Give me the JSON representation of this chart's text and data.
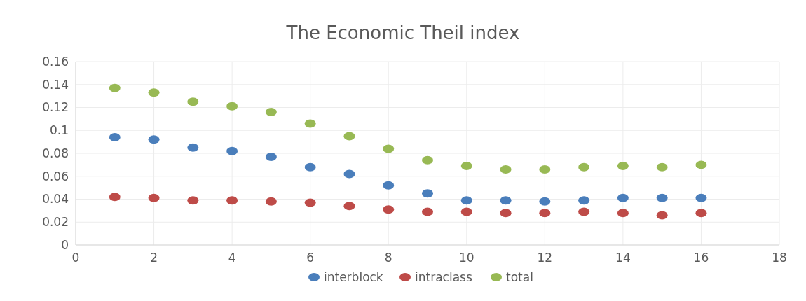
{
  "chart_data": {
    "type": "scatter",
    "title": "The Economic Theil index",
    "x": [
      1,
      2,
      3,
      4,
      5,
      6,
      7,
      8,
      9,
      10,
      11,
      12,
      13,
      14,
      15,
      16
    ],
    "series": [
      {
        "name": "interblock",
        "color": "#4a7ebb",
        "values": [
          0.094,
          0.092,
          0.085,
          0.082,
          0.077,
          0.068,
          0.062,
          0.052,
          0.045,
          0.039,
          0.039,
          0.038,
          0.039,
          0.041,
          0.041,
          0.041
        ]
      },
      {
        "name": "intraclass",
        "color": "#be4b48",
        "values": [
          0.042,
          0.041,
          0.039,
          0.039,
          0.038,
          0.037,
          0.034,
          0.031,
          0.029,
          0.029,
          0.028,
          0.028,
          0.029,
          0.028,
          0.026,
          0.028
        ]
      },
      {
        "name": "total",
        "color": "#98b954",
        "values": [
          0.137,
          0.133,
          0.125,
          0.121,
          0.116,
          0.106,
          0.095,
          0.084,
          0.074,
          0.069,
          0.066,
          0.066,
          0.068,
          0.069,
          0.068,
          0.07
        ]
      }
    ],
    "xlim": [
      0,
      18
    ],
    "xticks": [
      0,
      2,
      4,
      6,
      8,
      10,
      12,
      14,
      16,
      18
    ],
    "ylim": [
      0,
      0.16
    ],
    "yticks": [
      0,
      0.02,
      0.04,
      0.06,
      0.08,
      0.1,
      0.12,
      0.14,
      0.16
    ],
    "grid": true,
    "legend": "bottom",
    "marker": "circle"
  }
}
